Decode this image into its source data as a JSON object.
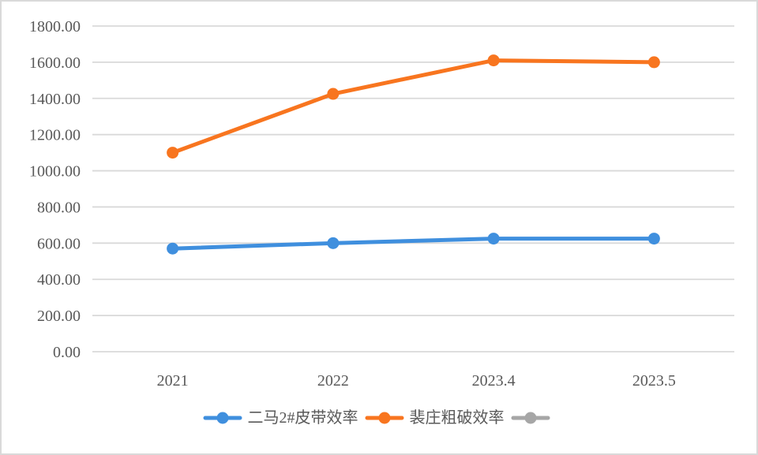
{
  "chart_data": {
    "type": "line",
    "title": "",
    "categories": [
      "2021",
      "2022",
      "2023.4",
      "2023.5"
    ],
    "series": [
      {
        "name": "二马2#皮带效率",
        "color": "#3f8fde",
        "values": [
          570,
          600,
          625,
          625
        ]
      },
      {
        "name": "裴庄粗破效率",
        "color": "#f8751f",
        "values": [
          1100,
          1425,
          1610,
          1600
        ]
      },
      {
        "name": "",
        "color": "#a6a6a6",
        "values": []
      }
    ],
    "ylim": [
      0,
      1800
    ],
    "y_ticks": {
      "values": [
        0,
        200,
        400,
        600,
        800,
        1000,
        1200,
        1400,
        1600,
        1800
      ],
      "labels": [
        "0.00",
        "200.00",
        "400.00",
        "600.00",
        "800.00",
        "1000.00",
        "1200.00",
        "1400.00",
        "1600.00",
        "1800.00"
      ]
    },
    "xlabel": "",
    "ylabel": "",
    "grid": "horizontal",
    "legend_position": "bottom",
    "colors": {
      "axis_text": "#595959",
      "gridline": "#d9d9d9",
      "border": "#d9d9d9",
      "background": "#ffffff"
    }
  }
}
